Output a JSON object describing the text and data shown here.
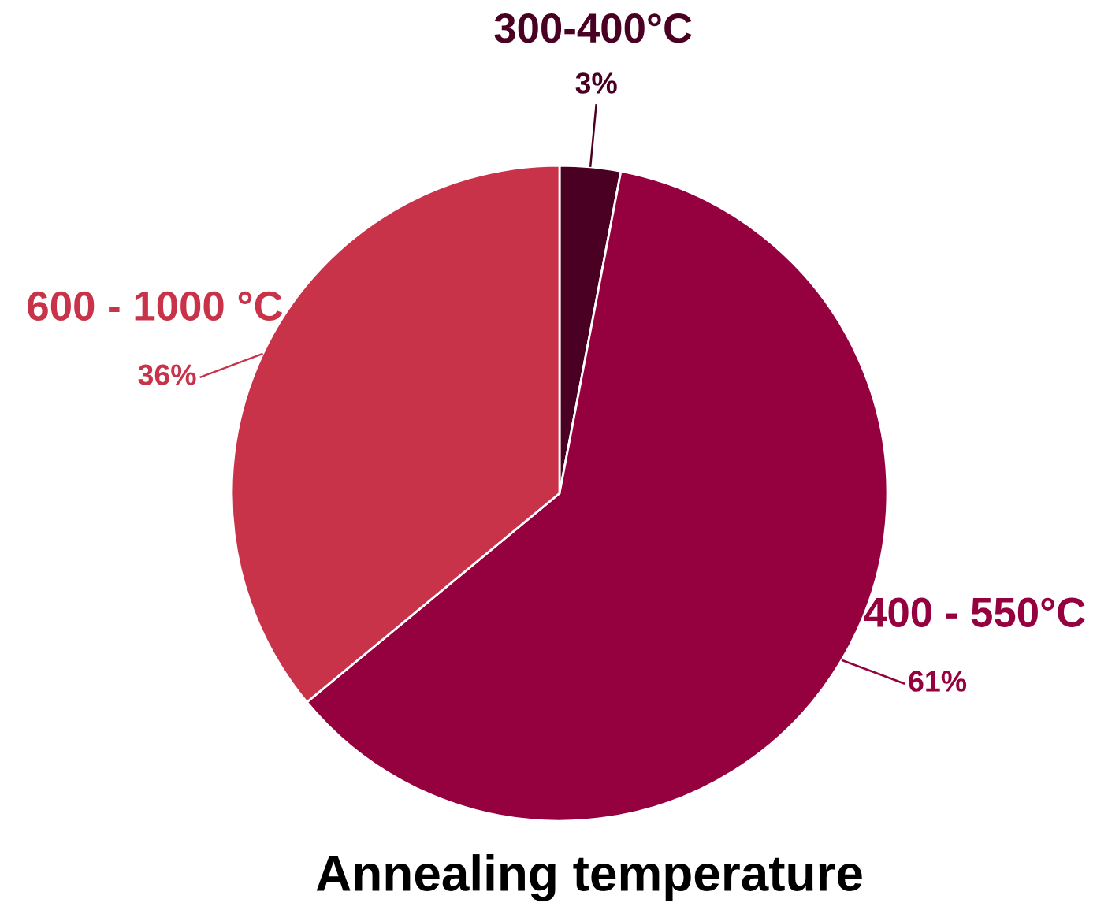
{
  "chart_data": {
    "type": "pie",
    "title": "Annealing temperature",
    "categories": [
      "300-400°C",
      "400 - 550°C",
      "600 - 1000 °C"
    ],
    "values": [
      3,
      61,
      36
    ],
    "value_labels": [
      "3%",
      "61%",
      "36%"
    ],
    "colors": [
      "#4a0022",
      "#95003f",
      "#c8334a"
    ]
  }
}
